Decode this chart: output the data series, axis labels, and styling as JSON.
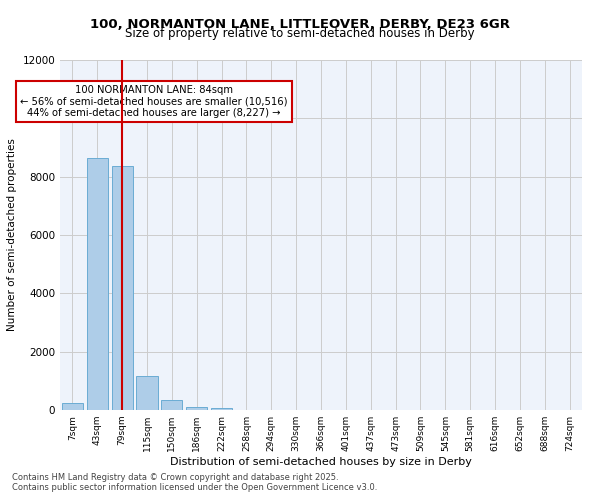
{
  "title_line1": "100, NORMANTON LANE, LITTLEOVER, DERBY, DE23 6GR",
  "title_line2": "Size of property relative to semi-detached houses in Derby",
  "xlabel": "Distribution of semi-detached houses by size in Derby",
  "ylabel": "Number of semi-detached properties",
  "footer_line1": "Contains HM Land Registry data © Crown copyright and database right 2025.",
  "footer_line2": "Contains public sector information licensed under the Open Government Licence v3.0.",
  "categories": [
    "7sqm",
    "43sqm",
    "79sqm",
    "115sqm",
    "150sqm",
    "186sqm",
    "222sqm",
    "258sqm",
    "294sqm",
    "330sqm",
    "366sqm",
    "401sqm",
    "437sqm",
    "473sqm",
    "509sqm",
    "545sqm",
    "581sqm",
    "616sqm",
    "652sqm",
    "688sqm",
    "724sqm"
  ],
  "values": [
    230,
    8650,
    8350,
    1150,
    350,
    120,
    70,
    0,
    0,
    0,
    0,
    0,
    0,
    0,
    0,
    0,
    0,
    0,
    0,
    0,
    0
  ],
  "bar_color": "#aecde8",
  "bar_edge_color": "#6aacd4",
  "grid_color": "#cccccc",
  "background_color": "#eef3fb",
  "vline_x": 2,
  "vline_color": "#cc0000",
  "annotation_box_text": "100 NORMANTON LANE: 84sqm\n← 56% of semi-detached houses are smaller (10,516)\n44% of semi-detached houses are larger (8,227) →",
  "annotation_box_color": "#cc0000",
  "ylim": [
    0,
    12000
  ],
  "yticks": [
    0,
    2000,
    4000,
    6000,
    8000,
    10000,
    12000
  ]
}
